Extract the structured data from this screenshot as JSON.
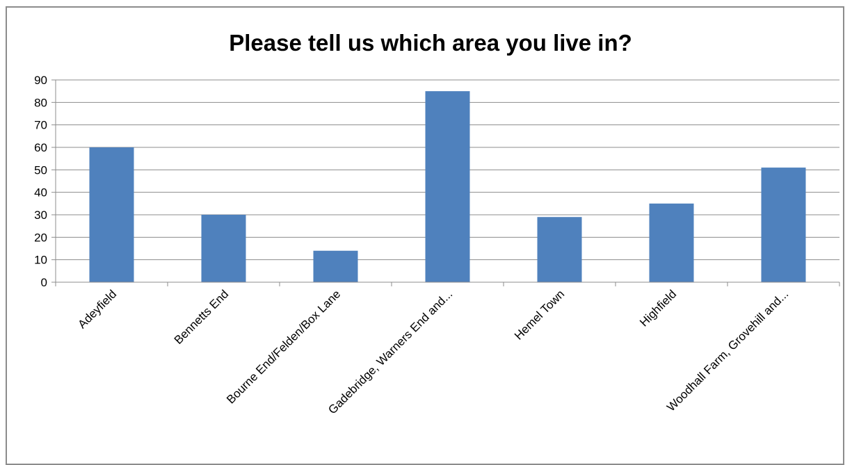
{
  "chart_data": {
    "type": "bar",
    "title": "Please tell us which area you live in?",
    "xlabel": "",
    "ylabel": "",
    "categories": [
      "Adeyfield",
      "Bennetts End",
      "Bourne End/Felden/Box Lane",
      "Gadebridge, Warners End and...",
      "Hemel Town",
      "Highfield",
      "Woodhall Farm, Grovehill and..."
    ],
    "values": [
      60,
      30,
      14,
      85,
      29,
      35,
      51
    ],
    "ylim": [
      0,
      90
    ],
    "yticks": [
      "0",
      "10",
      "20",
      "30",
      "40",
      "50",
      "60",
      "70",
      "80",
      "90"
    ],
    "grid": true,
    "legend": "none",
    "bar_color": "#4f81bd"
  }
}
